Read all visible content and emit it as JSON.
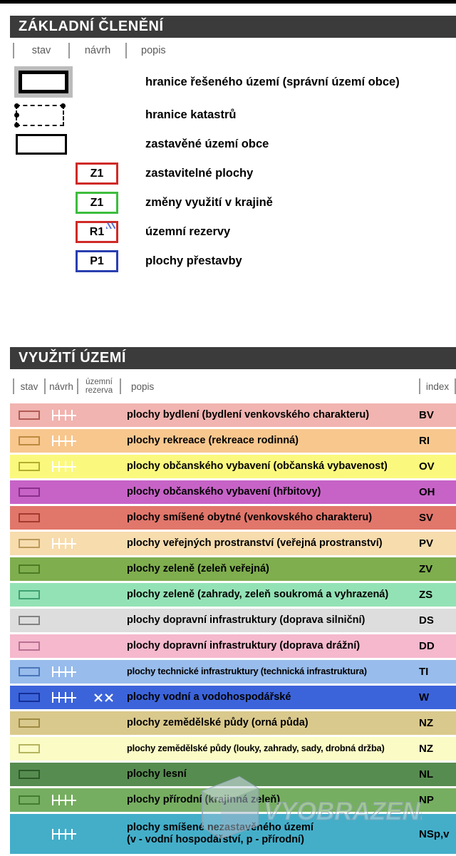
{
  "watermark": {
    "text": "VYOBRAZENÍ"
  },
  "section1": {
    "title": "ZÁKLADNÍ ČLENĚNÍ",
    "columns": [
      "stav",
      "návrh",
      "popis"
    ],
    "items": [
      {
        "symbol": "boundary-municipality",
        "label": "hranice řešeného území (správní území obce)"
      },
      {
        "symbol": "boundary-cadastre",
        "label": "hranice katastrů"
      },
      {
        "symbol": "built-up-area",
        "label": "zastavěné území obce"
      },
      {
        "symbol": "code-box",
        "code": "Z1",
        "border": "#cf2a27",
        "label": "zastavitelné plochy"
      },
      {
        "symbol": "code-box",
        "code": "Z1",
        "border": "#3dbd3d",
        "label": "změny využití v krajině"
      },
      {
        "symbol": "code-box",
        "code": "R1",
        "border": "#cf2a27",
        "accent": "#3e5ccc",
        "label": "územní rezervy"
      },
      {
        "symbol": "code-box",
        "code": "P1",
        "border": "#2a3fb0",
        "label": "plochy přestavby"
      }
    ]
  },
  "section2": {
    "title": "VYUŽITÍ ÚZEMÍ",
    "columns": [
      "stav",
      "návrh",
      "územní rezerva",
      "popis",
      "index"
    ],
    "rows": [
      {
        "bg": "#f1b4b0",
        "swatchBorder": "#b25b55",
        "stav": true,
        "navrh": true,
        "rezerva": false,
        "label": "plochy bydlení (bydlení venkovského charakteru)",
        "index": "BV"
      },
      {
        "bg": "#f8c78e",
        "swatchBorder": "#bd8a3e",
        "stav": true,
        "navrh": true,
        "rezerva": false,
        "label": "plochy rekreace (rekreace rodinná)",
        "index": "RI"
      },
      {
        "bg": "#fbf97d",
        "swatchBorder": "#b1ae2e",
        "stav": true,
        "navrh": true,
        "rezerva": false,
        "label": "plochy občanského vybavení (občanská vybavenost)",
        "index": "OV"
      },
      {
        "bg": "#c763c7",
        "swatchBorder": "#8c2f8c",
        "stav": true,
        "navrh": false,
        "rezerva": false,
        "label": "plochy občanského vybavení (hřbitovy)",
        "index": "OH"
      },
      {
        "bg": "#e1766b",
        "swatchBorder": "#a43a30",
        "stav": true,
        "navrh": false,
        "rezerva": false,
        "label": "plochy smíšené obytné (venkovského charakteru)",
        "index": "SV"
      },
      {
        "bg": "#f7dcae",
        "swatchBorder": "#bd9a5c",
        "stav": true,
        "navrh": true,
        "rezerva": false,
        "label": "plochy veřejných prostranství (veřejná prostranství)",
        "index": "PV"
      },
      {
        "bg": "#7fae4e",
        "swatchBorder": "#4c7c24",
        "stav": true,
        "navrh": false,
        "rezerva": false,
        "label": "plochy zeleně (zeleň veřejná)",
        "index": "ZV"
      },
      {
        "bg": "#93e2b5",
        "swatchBorder": "#3fa172",
        "stav": true,
        "navrh": false,
        "rezerva": false,
        "label": "plochy zeleně (zahrady, zeleň soukromá a vyhrazená)",
        "index": "ZS"
      },
      {
        "bg": "#dddddd",
        "swatchBorder": "#828282",
        "stav": true,
        "navrh": false,
        "rezerva": false,
        "label": "plochy dopravní infrastruktury (doprava silniční)",
        "index": "DS"
      },
      {
        "bg": "#f5b8cd",
        "swatchBorder": "#bb7092",
        "stav": true,
        "navrh": false,
        "rezerva": false,
        "label": "plochy dopravní infrastruktury (doprava drážní)",
        "index": "DD"
      },
      {
        "bg": "#98bcec",
        "swatchBorder": "#4a76ba",
        "stav": true,
        "navrh": true,
        "rezerva": false,
        "label": "plochy technické infrastruktury (technická infrastruktura)",
        "index": "TI"
      },
      {
        "bg": "#3c64da",
        "swatchBorder": "#142f96",
        "stav": true,
        "navrh": true,
        "rezerva": true,
        "label": "plochy vodní a vodohospodářské",
        "index": "W"
      },
      {
        "bg": "#dac98c",
        "swatchBorder": "#9e8b44",
        "stav": true,
        "navrh": false,
        "rezerva": false,
        "label": "plochy zemědělské půdy (orná půda)",
        "index": "NZ"
      },
      {
        "bg": "#fbfbc6",
        "swatchBorder": "#b5b55e",
        "stav": true,
        "navrh": false,
        "rezerva": false,
        "label": "plochy zemědělské půdy (louky, zahrady, sady, drobná držba)",
        "index": "NZ"
      },
      {
        "bg": "#578c50",
        "swatchBorder": "#2c5a28",
        "stav": true,
        "navrh": false,
        "rezerva": false,
        "label": "plochy lesní",
        "index": "NL"
      },
      {
        "bg": "#76ae61",
        "swatchBorder": "#447b30",
        "stav": true,
        "navrh": true,
        "rezerva": false,
        "label": "plochy přírodní (krajinná zeleň)",
        "index": "NP"
      },
      {
        "bg": "#44aec9",
        "swatchBorder": "#1d7f9a",
        "stav": false,
        "navrh": true,
        "rezerva": false,
        "label": "plochy smíšené nezastavěného území",
        "label2": "(v - vodní hospodářství, p - přírodní)",
        "index": "NSp,v"
      }
    ]
  }
}
